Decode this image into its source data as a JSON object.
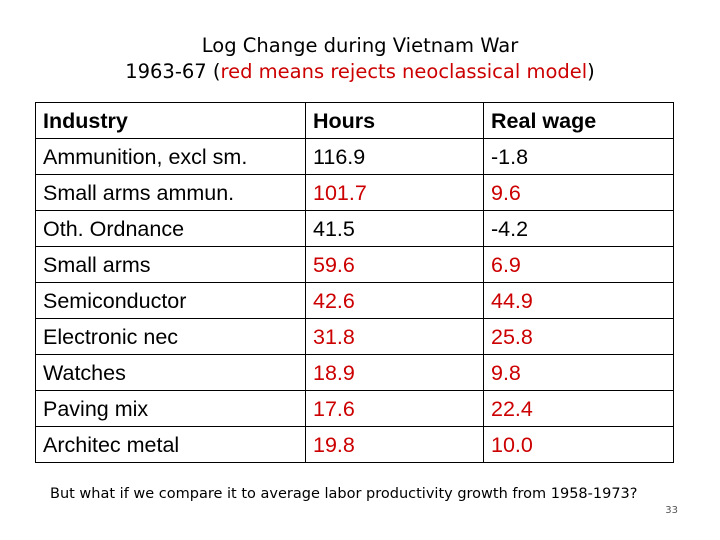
{
  "title": {
    "line1": "Log Change during Vietnam War",
    "line2_prefix": "1963-67 (",
    "line2_red": "red means rejects neoclassical model",
    "line2_suffix": ")"
  },
  "colors": {
    "highlight": "#cc0000",
    "text": "#000000"
  },
  "table": {
    "headers": [
      "Industry",
      "Hours",
      "Real wage"
    ],
    "rows": [
      {
        "industry": "Ammunition, excl sm.",
        "hours": "116.9",
        "wage": "-1.8",
        "hours_red": false,
        "wage_red": false
      },
      {
        "industry": "Small arms ammun.",
        "hours": "101.7",
        "wage": "9.6",
        "hours_red": true,
        "wage_red": true
      },
      {
        "industry": "Oth. Ordnance",
        "hours": "41.5",
        "wage": "-4.2",
        "hours_red": false,
        "wage_red": false
      },
      {
        "industry": "Small arms",
        "hours": "59.6",
        "wage": "6.9",
        "hours_red": true,
        "wage_red": true
      },
      {
        "industry": "Semiconductor",
        "hours": "42.6",
        "wage": "44.9",
        "hours_red": true,
        "wage_red": true
      },
      {
        "industry": "Electronic nec",
        "hours": "31.8",
        "wage": "25.8",
        "hours_red": true,
        "wage_red": true
      },
      {
        "industry": "Watches",
        "hours": "18.9",
        "wage": "9.8",
        "hours_red": true,
        "wage_red": true
      },
      {
        "industry": "Paving mix",
        "hours": "17.6",
        "wage": "22.4",
        "hours_red": true,
        "wage_red": true
      },
      {
        "industry": "Architec metal",
        "hours": "19.8",
        "wage": "10.0",
        "hours_red": true,
        "wage_red": true
      }
    ]
  },
  "note": "But what if we compare it to average labor productivity growth from 1958-1973?",
  "page_number": "33"
}
